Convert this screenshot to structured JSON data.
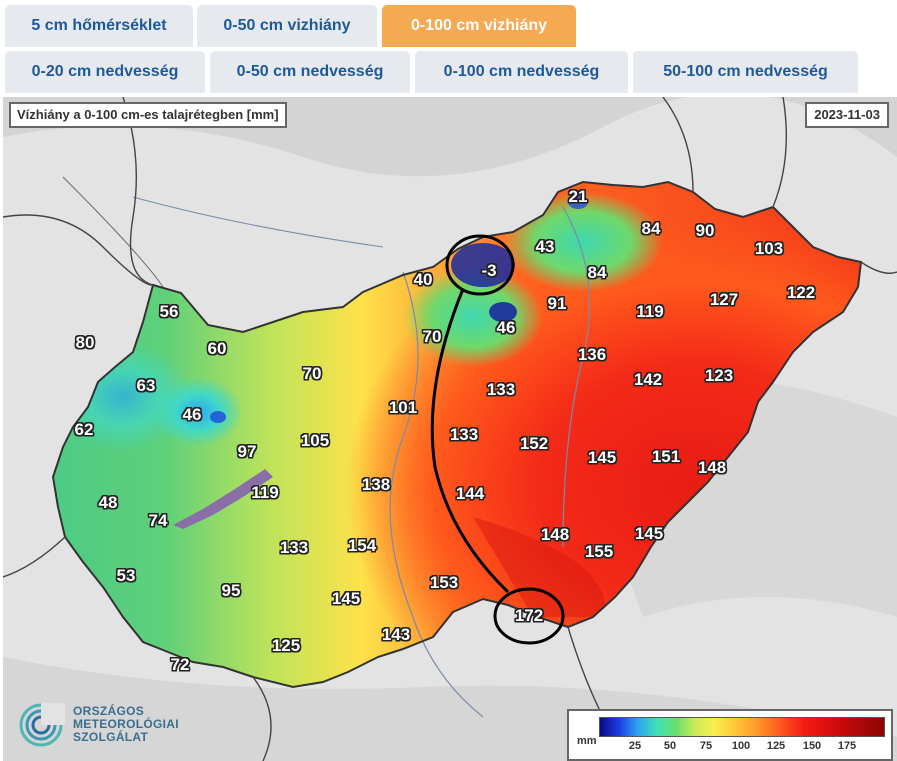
{
  "tabs_row1": [
    {
      "label": "5 cm hőmérséklet",
      "active": false
    },
    {
      "label": "0-50 cm vizhiány",
      "active": false
    },
    {
      "label": "0-100 cm vizhiány",
      "active": true
    }
  ],
  "tabs_row2": [
    {
      "label": "0-20 cm nedvesség",
      "active": false
    },
    {
      "label": "0-50 cm nedvesség",
      "active": false
    },
    {
      "label": "0-100 cm nedvesség",
      "active": false
    },
    {
      "label": "50-100 cm nedvesség",
      "active": false
    }
  ],
  "map": {
    "title": "Vízhiány a 0-100 cm-es talajrétegben [mm]",
    "date": "2023-11-03",
    "values": [
      "21",
      "84",
      "90",
      "103",
      "43",
      "84",
      "-3",
      "40",
      "127",
      "122",
      "91",
      "119",
      "56",
      "46",
      "70",
      "80",
      "60",
      "136",
      "70",
      "63",
      "142",
      "123",
      "133",
      "46",
      "101",
      "133",
      "152",
      "62",
      "105",
      "97",
      "145",
      "151",
      "148",
      "138",
      "144",
      "119",
      "48",
      "74",
      "148",
      "145",
      "133",
      "154",
      "155",
      "53",
      "95",
      "153",
      "145",
      "172",
      "143",
      "125",
      "72"
    ],
    "highlighted_values": [
      "-3",
      "172"
    ]
  },
  "legend": {
    "unit": "mm",
    "ticks": [
      "25",
      "50",
      "75",
      "100",
      "125",
      "150",
      "175"
    ]
  },
  "logo": {
    "line1": "ORSZÁGOS",
    "line2": "METEOROLÓGIAI",
    "line3": "SZOLGÁLAT"
  },
  "colors": {
    "tab_bg": "#e6e9ee",
    "tab_active_bg": "#f4a952",
    "tab_text": "#1e5a9a",
    "tab_active_text": "#ffffff",
    "map_background": "#e3e3e3"
  }
}
